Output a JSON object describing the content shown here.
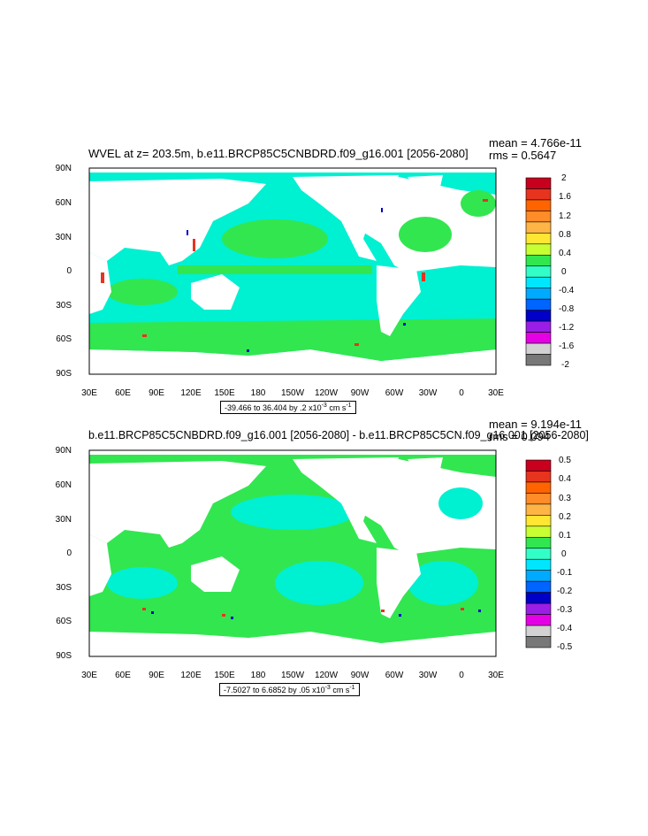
{
  "panels": [
    {
      "title": "WVEL at z= 203.5m, b.e11.BRCP85C5CNBDRD.f09_g16.001 [2056-2080]",
      "mean": "mean = 4.766e-11",
      "rms": "rms = 0.5647",
      "range_text": "-39.466 to 36.404 by .2 x10",
      "range_exp": "-3",
      "range_unit": " cm s",
      "range_unit_exp": "-1",
      "colorbar_labels": [
        "2",
        "1.6",
        "1.2",
        "0.8",
        "0.4",
        "0",
        "-0.4",
        "-0.8",
        "-1.2",
        "-1.6",
        "-2"
      ]
    },
    {
      "title": "b.e11.BRCP85C5CNBDRD.f09_g16.001 [2056-2080] - b.e11.BRCP85C5CN.f09_g16.001 [2056-2080]",
      "mean": "mean = 9.194e-11",
      "rms": "rms = 0.094",
      "range_text": "-7.5027 to 6.6852 by .05 x10",
      "range_exp": "-3",
      "range_unit": " cm s",
      "range_unit_exp": "-1",
      "colorbar_labels": [
        "0.5",
        "0.4",
        "0.3",
        "0.2",
        "0.1",
        "0",
        "-0.1",
        "-0.2",
        "-0.3",
        "-0.4",
        "-0.5"
      ]
    }
  ],
  "lat_labels": [
    "90N",
    "60N",
    "30N",
    "0",
    "30S",
    "60S",
    "90S"
  ],
  "lon_labels": [
    "30E",
    "60E",
    "90E",
    "120E",
    "150E",
    "180",
    "150W",
    "120W",
    "90W",
    "60W",
    "30W",
    "0",
    "30E"
  ],
  "colorbar_colors": [
    "#c8001e",
    "#e6341e",
    "#ff6400",
    "#ff8c28",
    "#ffb446",
    "#ffe632",
    "#c8ff32",
    "#32e650",
    "#32ffc8",
    "#00e6ff",
    "#00aaff",
    "#0064ff",
    "#0000c8",
    "#9b1ee6",
    "#e600e6",
    "#d2d2d2",
    "#787878"
  ],
  "colors": {
    "ocean_cyan": "#00f0d2",
    "ocean_green": "#32e650",
    "land": "#ffffff"
  }
}
